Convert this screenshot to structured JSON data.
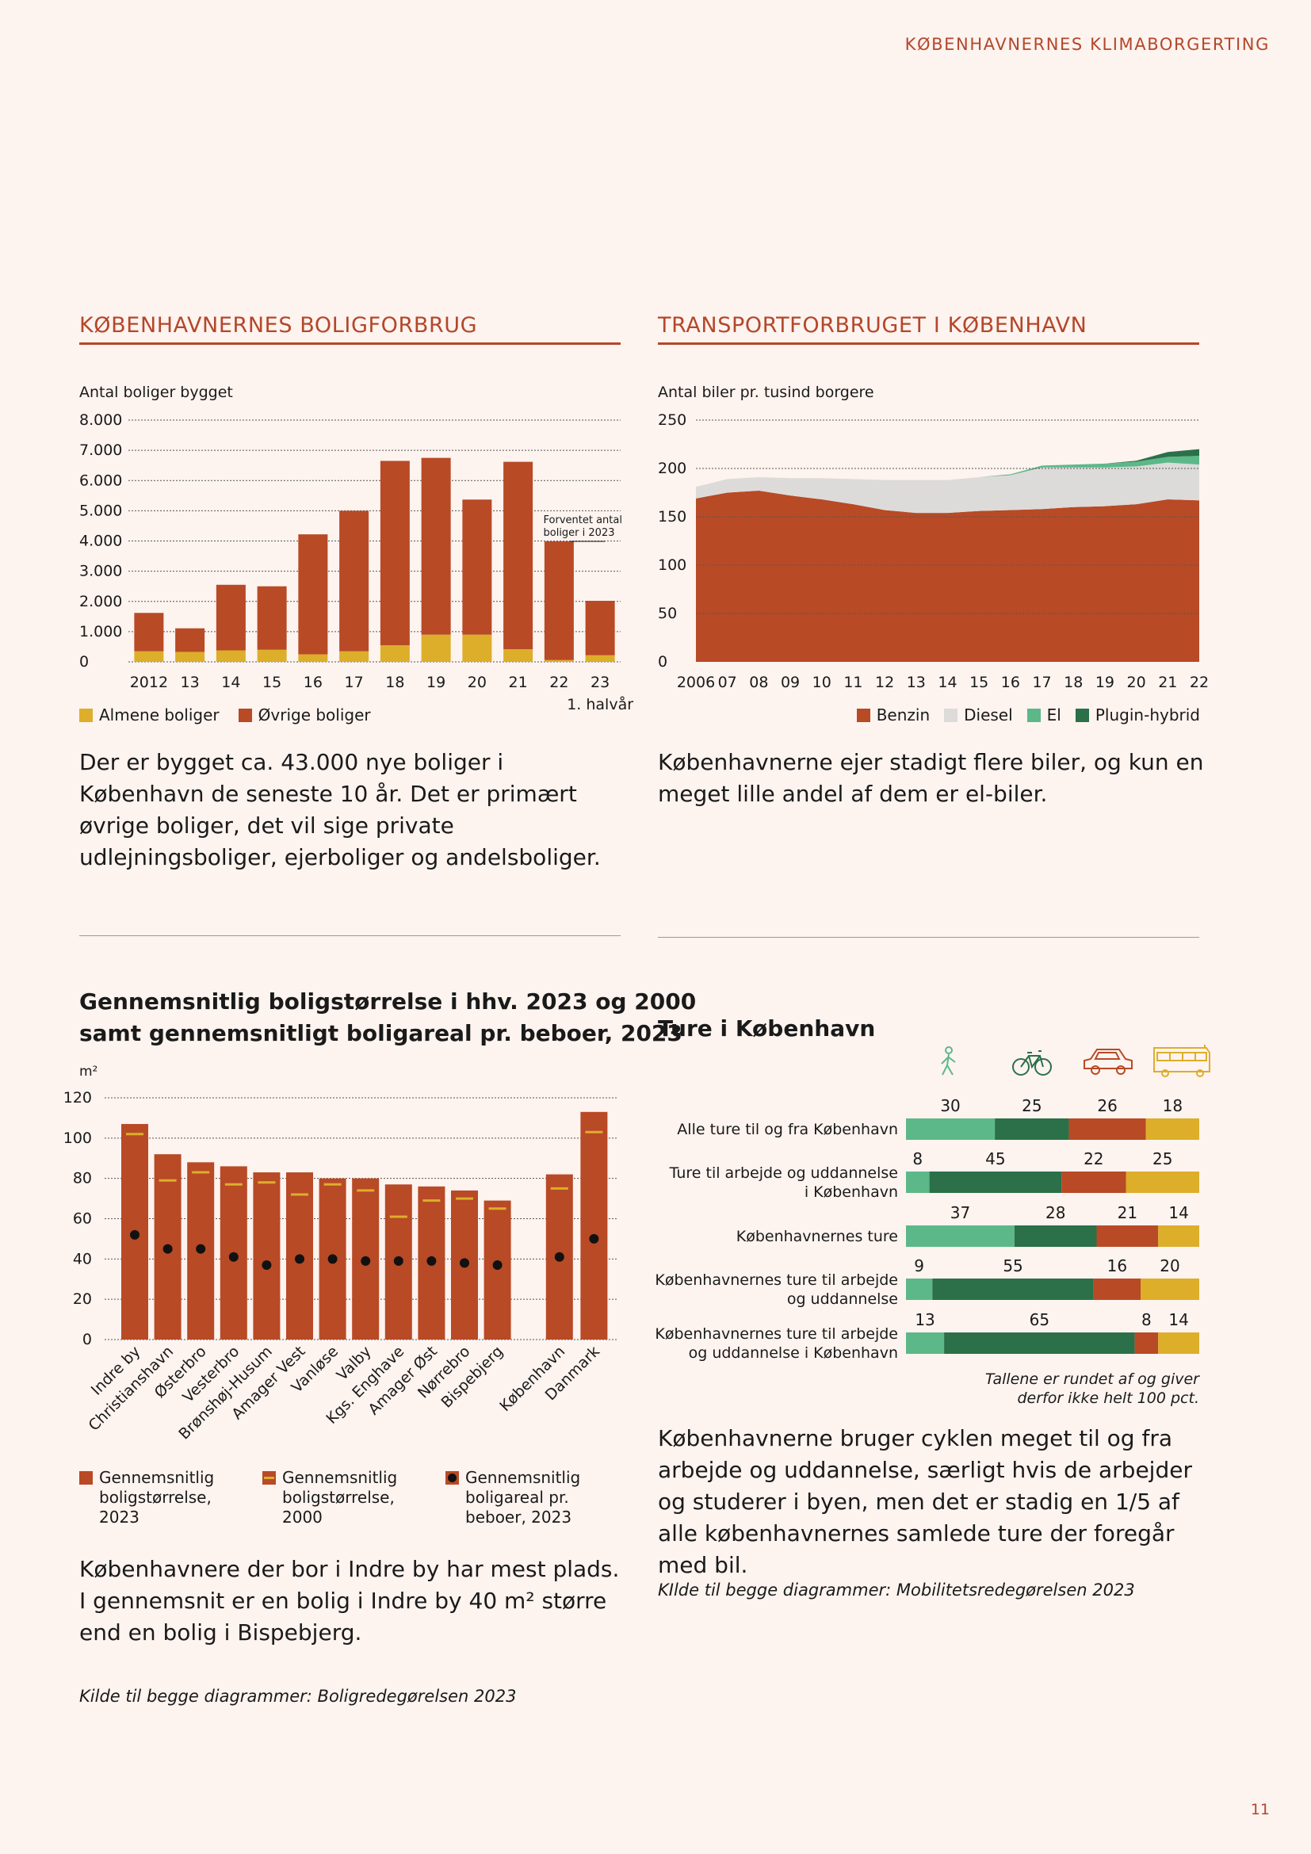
{
  "header": "KØBENHAVNERNES KLIMABORGERTING",
  "page_number": "11",
  "colors": {
    "brick": "#b84a26",
    "mustard": "#ddae2a",
    "lightgreen": "#5cb889",
    "darkgreen": "#2b7048",
    "grey": "#dcdbd9",
    "accent": "#b4472a"
  },
  "housing": {
    "title": "KØBENHAVNERNES BOLIGFORBRUG",
    "text": "Der er bygget ca. 43.000 nye boliger i København de seneste 10 år. Det er primært øvrige boliger, det vil sige private udlejningsboliger, ejerboliger og andelsboliger."
  },
  "transport": {
    "title": "TRANSPORTFORBRUGET I KØBENHAVN",
    "text": "Københavnerne ejer stadigt flere biler, og kun en meget lille andel af dem er el-biler."
  },
  "size": {
    "title_line1": "Gennemsnitlig boligstørrelse i hhv. 2023 og 2000",
    "title_line2": "samt gennemsnitligt boligareal pr. beboer, 2023",
    "text": "Københavnere der bor i Indre by har mest plads. I gennemsnit er en bolig i Indre by 40 m² større end en bolig i Bispebjerg.",
    "source": "Kilde til begge diagrammer: Boligredegørelsen 2023"
  },
  "trips": {
    "title": "Ture i København",
    "note_line1": "Tallene er rundet af og giver",
    "note_line2": "derfor ikke helt 100 pct.",
    "text": "Københavnerne bruger cyklen meget til og fra arbejde og uddannelse, særligt hvis de arbejder og studerer i byen, men det er stadig en 1/5 af alle københavnernes samlede ture der foregår med bil.",
    "source": "KIlde til begge diagrammer: Mobilitetsredegørelsen 2023"
  },
  "chart_data": [
    {
      "id": "housing",
      "type": "bar",
      "stacked": true,
      "ylabel": "Antal boliger bygget",
      "ylim": [
        0,
        8000
      ],
      "yticks": [
        0,
        1000,
        2000,
        3000,
        4000,
        5000,
        6000,
        7000,
        8000
      ],
      "ytick_labels": [
        "0",
        "1.000",
        "2.000",
        "3.000",
        "4.000",
        "5.000",
        "6.000",
        "7.000",
        "8.000"
      ],
      "categories": [
        "2012",
        "13",
        "14",
        "15",
        "16",
        "17",
        "18",
        "19",
        "20",
        "21",
        "22",
        "23"
      ],
      "category_sublabel": "1. halvår",
      "series": [
        {
          "name": "Almene boliger",
          "color": "#ddae2a",
          "values": [
            350,
            330,
            380,
            400,
            250,
            350,
            550,
            900,
            900,
            420,
            60,
            220
          ]
        },
        {
          "name": "Øvrige boliger",
          "color": "#b84a26",
          "values": [
            1270,
            780,
            2170,
            2100,
            3970,
            4650,
            6100,
            5850,
            4470,
            6200,
            3930,
            1800
          ]
        }
      ],
      "annotation_line1": "Forventet antal",
      "annotation_line2": "boliger i 2023",
      "grid": true,
      "legend": "bottom-left"
    },
    {
      "id": "transport",
      "type": "area",
      "stacked": true,
      "ylabel": "Antal biler pr. tusind borgere",
      "ylim": [
        0,
        250
      ],
      "yticks": [
        0,
        50,
        100,
        150,
        200,
        250
      ],
      "x": [
        "2006",
        "07",
        "08",
        "09",
        "10",
        "11",
        "12",
        "13",
        "14",
        "15",
        "16",
        "17",
        "18",
        "19",
        "20",
        "21",
        "22"
      ],
      "series": [
        {
          "name": "Benzin",
          "color": "#b84a26",
          "values": [
            169,
            175,
            177,
            172,
            168,
            163,
            157,
            154,
            154,
            156,
            157,
            158,
            160,
            161,
            163,
            168,
            167
          ]
        },
        {
          "name": "Diesel",
          "color": "#dcdbd9",
          "values": [
            12,
            14,
            14,
            18,
            22,
            26,
            31,
            34,
            34,
            35,
            36,
            43,
            41,
            40,
            39,
            38,
            37
          ]
        },
        {
          "name": "El",
          "color": "#5cb889",
          "values": [
            0,
            0,
            0,
            0,
            0,
            0,
            0,
            0,
            0,
            0,
            1,
            2,
            3,
            4,
            5,
            6,
            9
          ]
        },
        {
          "name": "Plugin-hybrid",
          "color": "#2b7048",
          "values": [
            0,
            0,
            0,
            0,
            0,
            0,
            0,
            0,
            0,
            0,
            0,
            0,
            0,
            0,
            1,
            5,
            7
          ]
        }
      ],
      "grid": true,
      "legend": "bottom-right"
    },
    {
      "id": "size",
      "type": "bar",
      "ylabel": "m²",
      "ylim": [
        0,
        120
      ],
      "yticks": [
        0,
        20,
        40,
        60,
        80,
        100,
        120
      ],
      "categories": [
        "Indre by",
        "Christianshavn",
        "Østerbro",
        "Vesterbro",
        "Brønshøj-Husum",
        "Amager Vest",
        "Vanløse",
        "Valby",
        "Kgs. Enghave",
        "Amager Øst",
        "Nørrebro",
        "Bispebjerg",
        "København",
        "Danmark"
      ],
      "series": [
        {
          "name": "Gennemsnitlig boligstørrelse, 2023",
          "type": "bar",
          "color": "#b84a26",
          "values": [
            107,
            92,
            88,
            86,
            83,
            83,
            80,
            80,
            77,
            76,
            74,
            69,
            82,
            113
          ]
        },
        {
          "name": "Gennemsnitlig boligstørrelse, 2000",
          "type": "marker-line",
          "color": "#ddae2a",
          "values": [
            102,
            79,
            83,
            77,
            78,
            72,
            77,
            74,
            61,
            69,
            70,
            65,
            75,
            103
          ]
        },
        {
          "name": "Gennemsnitlig boligareal pr. beboer, 2023",
          "type": "dot",
          "color": "#111111",
          "values": [
            52,
            45,
            45,
            41,
            37,
            40,
            40,
            39,
            39,
            39,
            38,
            37,
            41,
            50
          ]
        }
      ],
      "grid": true,
      "legend": "bottom"
    },
    {
      "id": "trips",
      "type": "bar",
      "orientation": "horizontal",
      "stacked": true,
      "categories": [
        [
          "Alle ture til og fra København"
        ],
        [
          "Ture til arbejde og uddannelse",
          "i København"
        ],
        [
          "Københavnernes ture"
        ],
        [
          "Københavnernes ture til arbejde",
          "og uddannelse"
        ],
        [
          "Københavnernes ture til arbejde",
          "og uddannelse i København"
        ]
      ],
      "series": [
        {
          "name": "walk-icon",
          "color": "#5cb889",
          "values": [
            30,
            8,
            37,
            9,
            13
          ]
        },
        {
          "name": "bicycle-icon",
          "color": "#2b7048",
          "values": [
            25,
            45,
            28,
            55,
            65
          ]
        },
        {
          "name": "car-icon",
          "color": "#b84a26",
          "values": [
            26,
            22,
            21,
            16,
            8
          ]
        },
        {
          "name": "bus-icon",
          "color": "#ddae2a",
          "values": [
            18,
            25,
            14,
            20,
            14
          ]
        }
      ],
      "unit": "pct."
    }
  ]
}
